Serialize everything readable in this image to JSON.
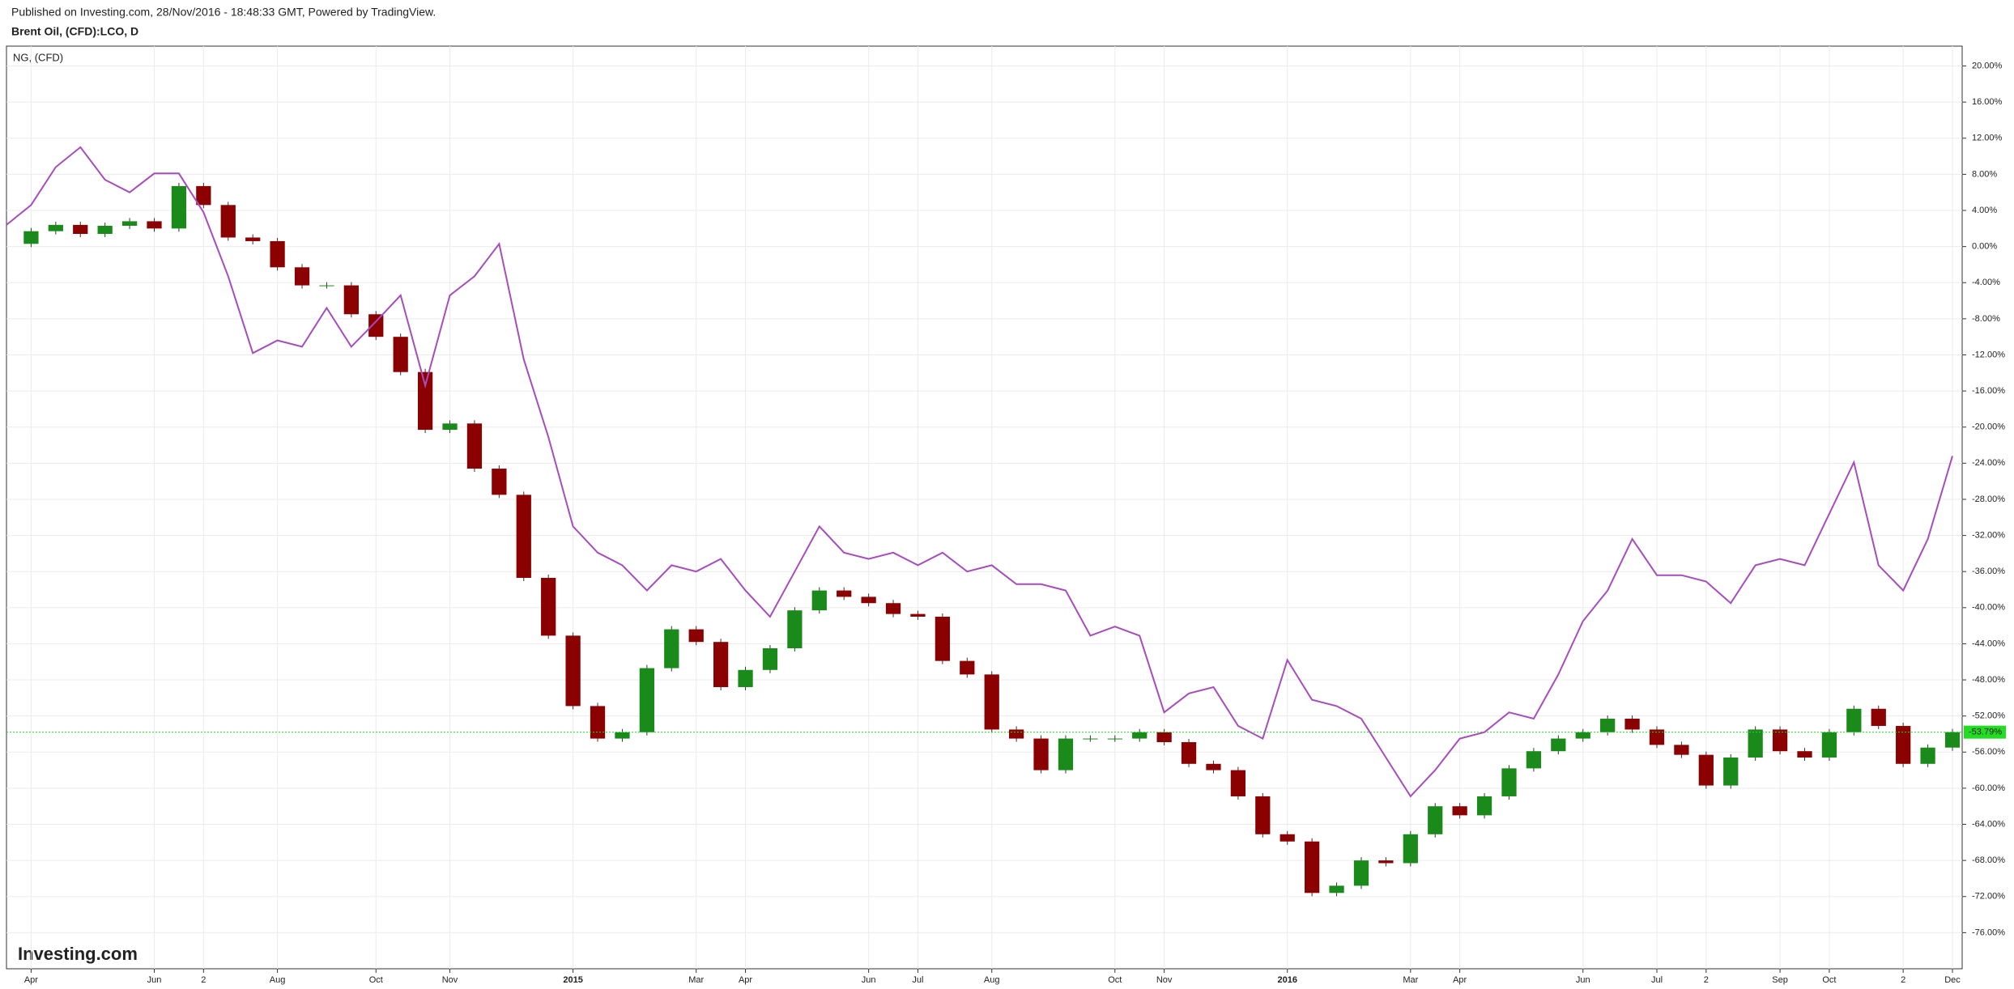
{
  "header": {
    "published": "Published on Investing.com, 28/Nov/2016 - 18:48:33 GMT, Powered by TradingView.",
    "symbol": "Brent Oil, (CFD):LCO, D"
  },
  "logo": "Investing.com",
  "chart_data": {
    "type": "line",
    "categories": [
      null,
      "Apr",
      null,
      null,
      null,
      null,
      "Jun",
      null,
      "2",
      null,
      null,
      "Aug",
      null,
      null,
      null,
      "Oct",
      null,
      null,
      "Nov",
      null,
      null,
      null,
      null,
      "2015",
      null,
      null,
      null,
      null,
      "Mar",
      null,
      "Apr",
      null,
      null,
      null,
      null,
      "Jun",
      null,
      "Jul",
      null,
      null,
      "Aug",
      null,
      null,
      null,
      null,
      "Oct",
      null,
      "Nov",
      null,
      null,
      null,
      null,
      "2016",
      null,
      null,
      null,
      null,
      "Mar",
      null,
      "Apr",
      null,
      null,
      null,
      null,
      "Jun",
      null,
      null,
      "Jul",
      null,
      "2",
      null,
      null,
      "Sep",
      null,
      "Oct",
      null,
      null,
      "2",
      null,
      "Dec"
    ],
    "series": [
      {
        "name": "Brent Oil, (CFD):LCO, D",
        "type": "candlestick",
        "up_color": "#1a8a1a",
        "down_color": "#8b0000",
        "last_color": "#22dd22",
        "last_label": "-53.79%",
        "values": [
          0.3,
          1.7,
          2.4,
          1.4,
          2.3,
          2.8,
          2.0,
          6.7,
          4.6,
          1.0,
          0.6,
          -2.3,
          -4.3,
          -4.3,
          -7.5,
          -10.0,
          -13.9,
          -20.3,
          -19.6,
          -24.6,
          -27.5,
          -36.7,
          -43.1,
          -50.9,
          -54.5,
          -53.8,
          -46.7,
          -42.4,
          -43.8,
          -48.8,
          -46.9,
          -44.5,
          -40.3,
          -38.1,
          -38.8,
          -39.5,
          -40.7,
          -41.0,
          -45.9,
          -47.4,
          -53.5,
          -54.5,
          -58.0,
          -54.5,
          -54.5,
          -54.5,
          -53.8,
          -54.9,
          -57.3,
          -58.0,
          -60.9,
          -65.1,
          -65.9,
          -71.6,
          -70.8,
          -68.0,
          -68.3,
          -65.1,
          -62.0,
          -63.0,
          -60.9,
          -57.8,
          -55.9,
          -54.5,
          -53.8,
          -52.3,
          -53.5,
          -55.2,
          -56.3,
          -59.7,
          -56.6,
          -53.5,
          -55.9,
          -56.6,
          -53.8,
          -51.2,
          -53.1,
          -57.3,
          -55.5,
          -53.79
        ]
      },
      {
        "name": "NG,  (CFD)",
        "type": "line",
        "color": "#a64dbb",
        "values": [
          2.4,
          4.6,
          8.8,
          11.0,
          7.4,
          6.0,
          8.1,
          8.1,
          3.8,
          -3.3,
          -11.8,
          -10.4,
          -11.1,
          -6.8,
          -11.1,
          -8.3,
          -5.4,
          -15.4,
          -5.4,
          -3.3,
          0.3,
          -12.5,
          -21.1,
          -31.0,
          -33.9,
          -35.3,
          -38.1,
          -35.3,
          -36.0,
          -34.6,
          -38.1,
          -41.0,
          -36.0,
          -31.0,
          -33.9,
          -34.6,
          -33.9,
          -35.3,
          -33.9,
          -36.0,
          -35.3,
          -37.4,
          -37.4,
          -38.1,
          -43.1,
          -42.1,
          -43.1,
          -51.6,
          -49.5,
          -48.8,
          -53.1,
          -54.5,
          -45.8,
          -50.2,
          -50.9,
          -52.3,
          -56.6,
          -60.9,
          -58.0,
          -54.5,
          -53.8,
          -51.6,
          -52.3,
          -47.4,
          -41.5,
          -38.1,
          -32.4,
          -36.4,
          -36.4,
          -37.1,
          -39.5,
          -35.3,
          -34.6,
          -35.3,
          -29.6,
          -23.9,
          -35.3,
          -38.1,
          -32.4,
          -23.2
        ]
      }
    ],
    "ylim": [
      -80.0,
      22.2
    ],
    "yticks": [
      {
        "value": 20,
        "label": "20.00%"
      },
      {
        "value": 16,
        "label": "16.00%"
      },
      {
        "value": 12,
        "label": "12.00%"
      },
      {
        "value": 8,
        "label": "8.00%"
      },
      {
        "value": 4,
        "label": "4.00%"
      },
      {
        "value": 0,
        "label": "0.00%"
      },
      {
        "value": -4,
        "label": "-4.00%"
      },
      {
        "value": -8,
        "label": "-8.00%"
      },
      {
        "value": -12,
        "label": "-12.00%"
      },
      {
        "value": -16,
        "label": "-16.00%"
      },
      {
        "value": -20,
        "label": "-20.00%"
      },
      {
        "value": -24,
        "label": "-24.00%"
      },
      {
        "value": -28,
        "label": "-28.00%"
      },
      {
        "value": -32,
        "label": "-32.00%"
      },
      {
        "value": -36,
        "label": "-36.00%"
      },
      {
        "value": -40,
        "label": "-40.00%"
      },
      {
        "value": -44,
        "label": "-44.00%"
      },
      {
        "value": -48,
        "label": "-48.00%"
      },
      {
        "value": -52,
        "label": "-52.00%"
      },
      {
        "value": -56,
        "label": "-56.00%"
      },
      {
        "value": -60,
        "label": "-60.00%"
      },
      {
        "value": -64,
        "label": "-64.00%"
      },
      {
        "value": -68,
        "label": "-68.00%"
      },
      {
        "value": -72,
        "label": "-72.00%"
      },
      {
        "value": -76,
        "label": "-76.00%"
      }
    ],
    "grid": true,
    "grid_color": "#ebebeb"
  }
}
